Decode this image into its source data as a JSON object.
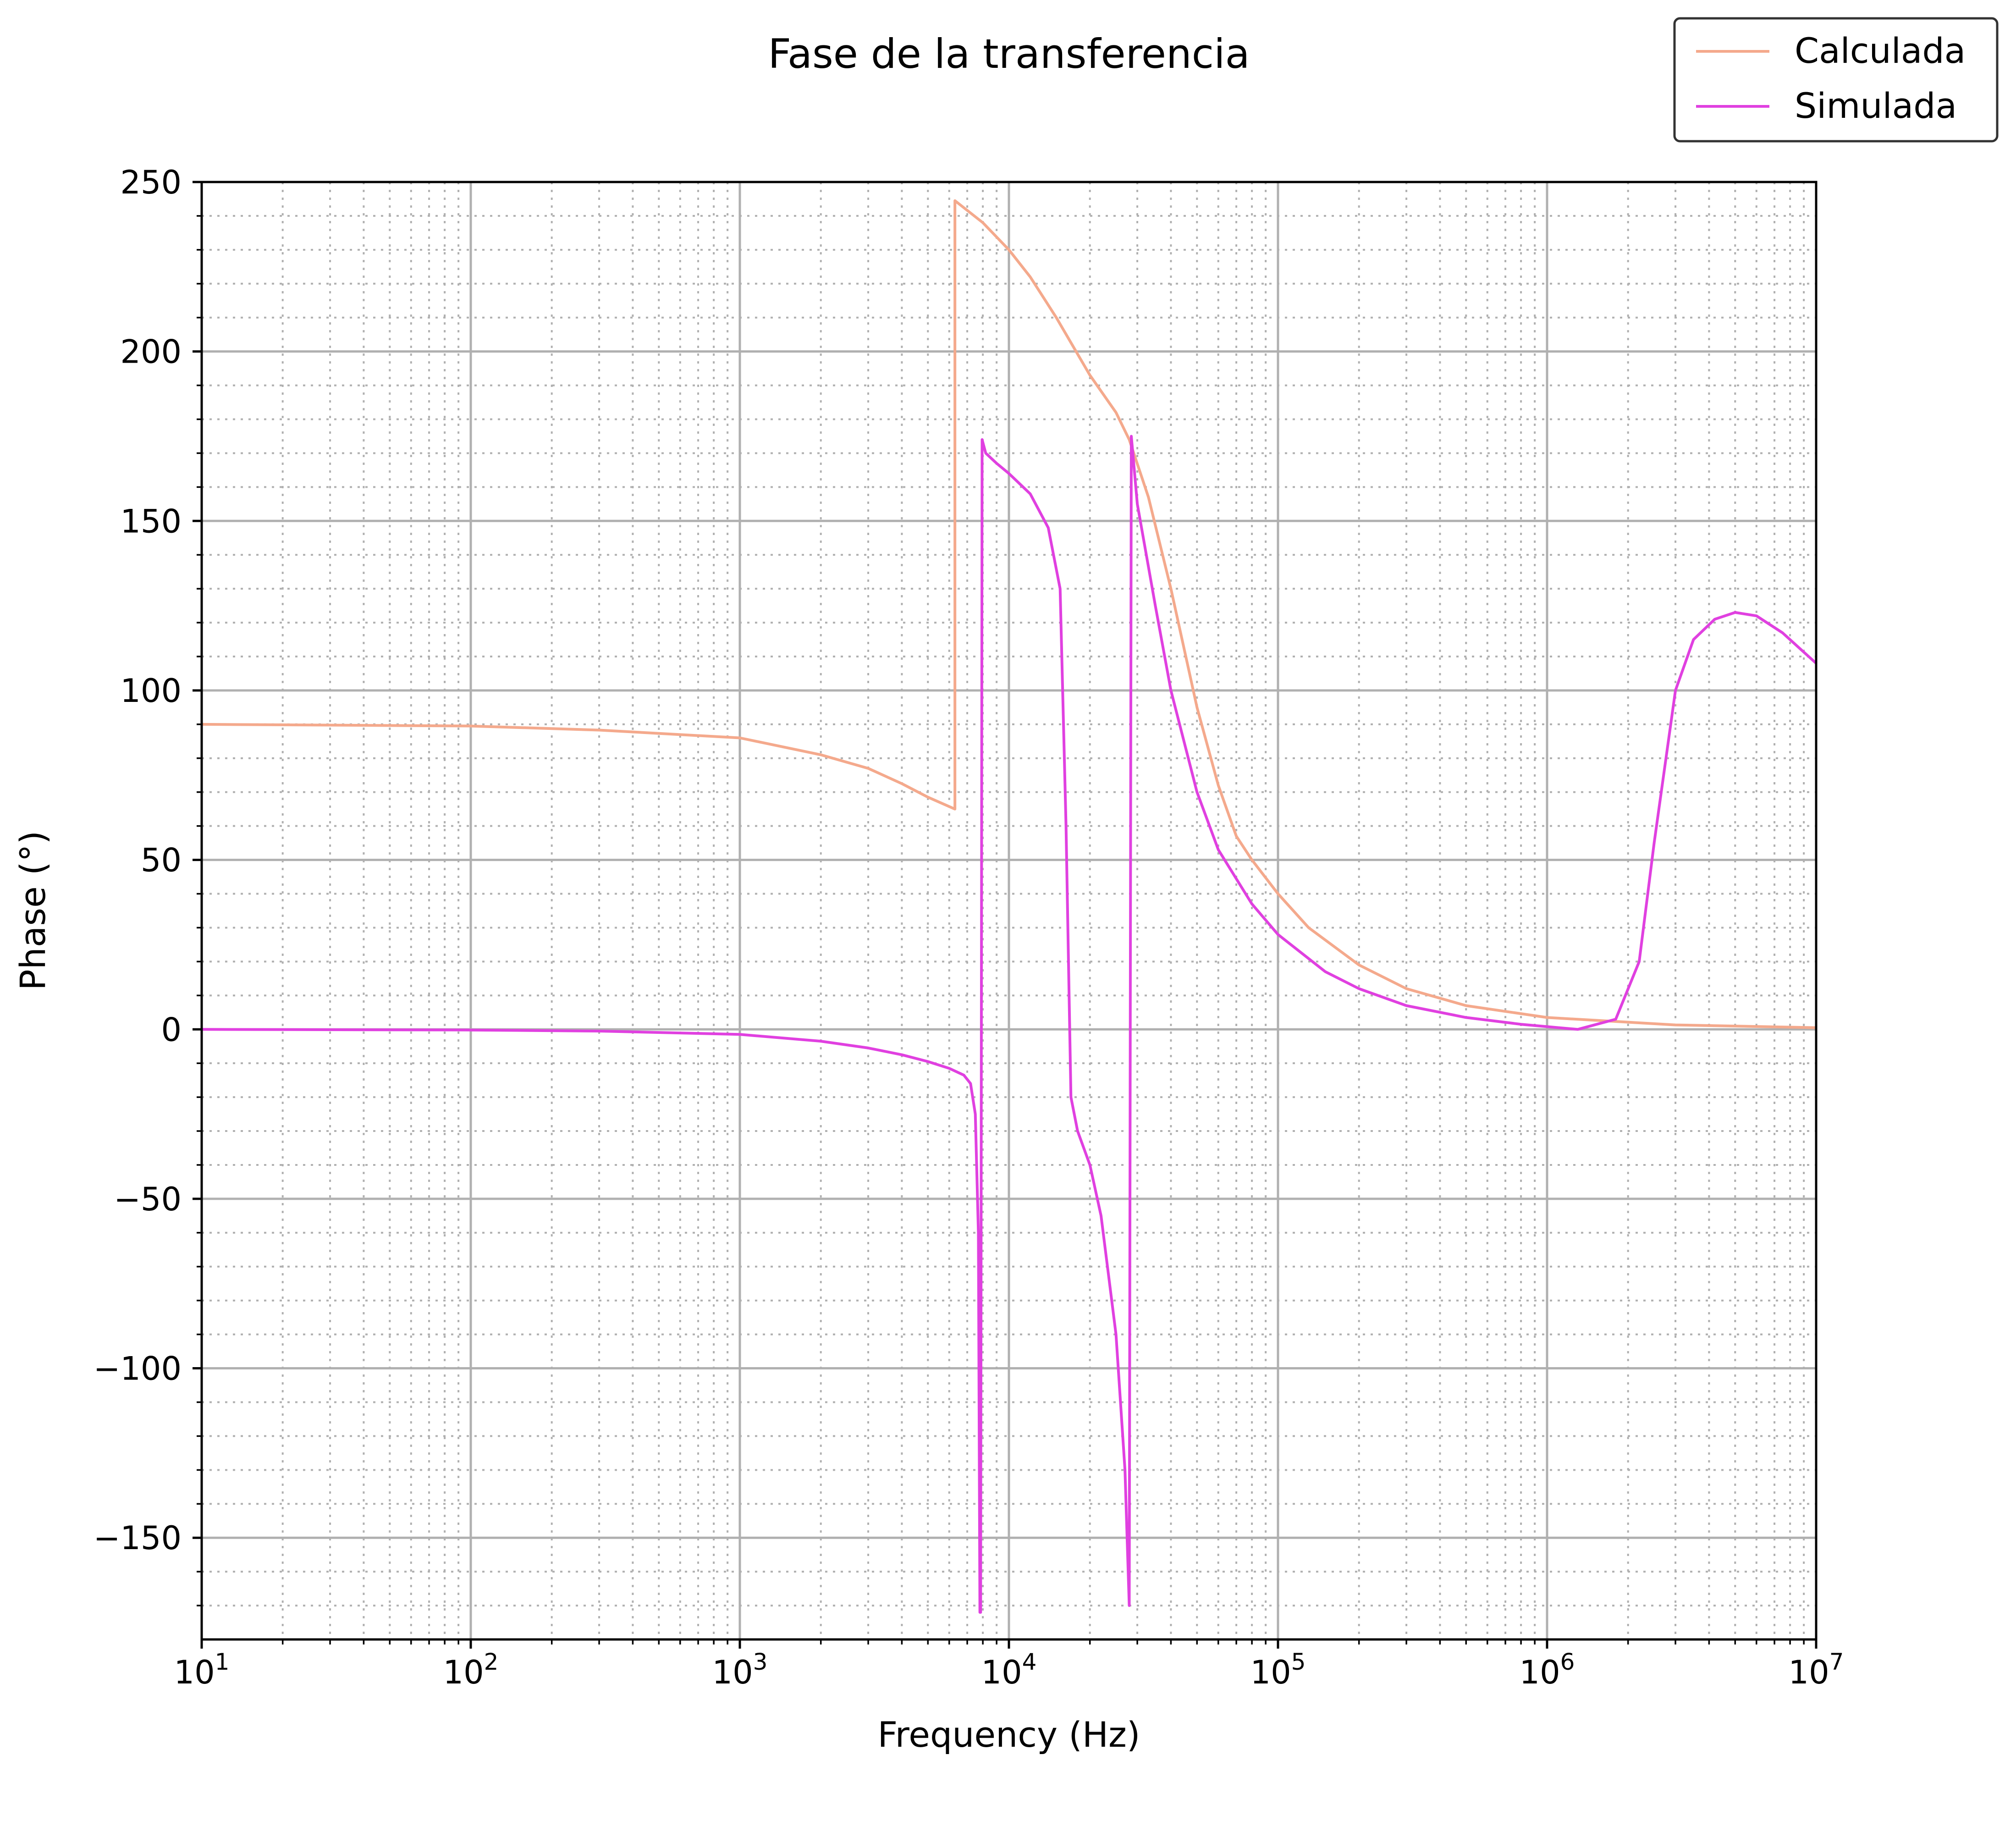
{
  "chart_data": {
    "type": "line",
    "title": "Fase de la transferencia",
    "xlabel": "Frequency (Hz)",
    "ylabel": "Phase (°)",
    "xscale": "log",
    "xlim": [
      10,
      10000000
    ],
    "ylim": [
      -180,
      250
    ],
    "xticks": [
      {
        "base": "10",
        "exp": "1"
      },
      {
        "base": "10",
        "exp": "2"
      },
      {
        "base": "10",
        "exp": "3"
      },
      {
        "base": "10",
        "exp": "4"
      },
      {
        "base": "10",
        "exp": "5"
      },
      {
        "base": "10",
        "exp": "6"
      },
      {
        "base": "10",
        "exp": "7"
      }
    ],
    "yticks": [
      "250",
      "200",
      "150",
      "100",
      "50",
      "0",
      "−50",
      "−100",
      "−150"
    ],
    "grid": "major solid, minor dotted",
    "legend_position": "top-right",
    "series": [
      {
        "name": "Calculada",
        "color": "#f4a98c",
        "points": [
          [
            10,
            90
          ],
          [
            100,
            89.5
          ],
          [
            300,
            88.3
          ],
          [
            1000,
            86
          ],
          [
            2000,
            81
          ],
          [
            3000,
            77
          ],
          [
            4000,
            72.5
          ],
          [
            5000,
            68.5
          ],
          [
            6300,
            65
          ],
          [
            6300,
            244.5
          ],
          [
            8000,
            238
          ],
          [
            10000,
            230
          ],
          [
            12000,
            222
          ],
          [
            15000,
            210
          ],
          [
            20000,
            193
          ],
          [
            25000,
            182
          ],
          [
            28000,
            174
          ],
          [
            33000,
            157
          ],
          [
            40000,
            130
          ],
          [
            50000,
            95
          ],
          [
            60000,
            72
          ],
          [
            70000,
            57
          ],
          [
            80000,
            50
          ],
          [
            100000,
            40
          ],
          [
            130000,
            30
          ],
          [
            200000,
            19
          ],
          [
            300000,
            12
          ],
          [
            500000,
            7
          ],
          [
            1000000,
            3.5
          ],
          [
            3000000,
            1.3
          ],
          [
            10000000,
            0.5
          ]
        ]
      },
      {
        "name": "Simulada",
        "color": "#e040e0",
        "points": [
          [
            10,
            0
          ],
          [
            100,
            -0.2
          ],
          [
            300,
            -0.5
          ],
          [
            1000,
            -1.5
          ],
          [
            2000,
            -3.5
          ],
          [
            3000,
            -5.5
          ],
          [
            4000,
            -7.5
          ],
          [
            5000,
            -9.5
          ],
          [
            6000,
            -11.5
          ],
          [
            6800,
            -13.5
          ],
          [
            7200,
            -16
          ],
          [
            7500,
            -25
          ],
          [
            7700,
            -60
          ],
          [
            7800,
            -172
          ],
          [
            7850,
            -172
          ],
          [
            7950,
            174
          ],
          [
            8200,
            170
          ],
          [
            9000,
            167
          ],
          [
            10000,
            164
          ],
          [
            12000,
            158
          ],
          [
            14000,
            148
          ],
          [
            15500,
            130
          ],
          [
            16300,
            60
          ],
          [
            17000,
            -20
          ],
          [
            18000,
            -30
          ],
          [
            20000,
            -40
          ],
          [
            22000,
            -55
          ],
          [
            25000,
            -90
          ],
          [
            27000,
            -130
          ],
          [
            28000,
            -170
          ],
          [
            28500,
            175
          ],
          [
            30000,
            155
          ],
          [
            35000,
            125
          ],
          [
            40000,
            100
          ],
          [
            50000,
            70
          ],
          [
            60000,
            53
          ],
          [
            80000,
            37
          ],
          [
            100000,
            28
          ],
          [
            150000,
            17
          ],
          [
            200000,
            12
          ],
          [
            300000,
            7
          ],
          [
            500000,
            3.5
          ],
          [
            800000,
            1.5
          ],
          [
            1300000,
            0
          ],
          [
            1800000,
            3
          ],
          [
            2200000,
            20
          ],
          [
            2500000,
            55
          ],
          [
            3000000,
            100
          ],
          [
            3500000,
            115
          ],
          [
            4200000,
            121
          ],
          [
            5000000,
            123
          ],
          [
            6000000,
            122
          ],
          [
            7500000,
            117
          ],
          [
            10000000,
            108
          ]
        ]
      }
    ]
  }
}
